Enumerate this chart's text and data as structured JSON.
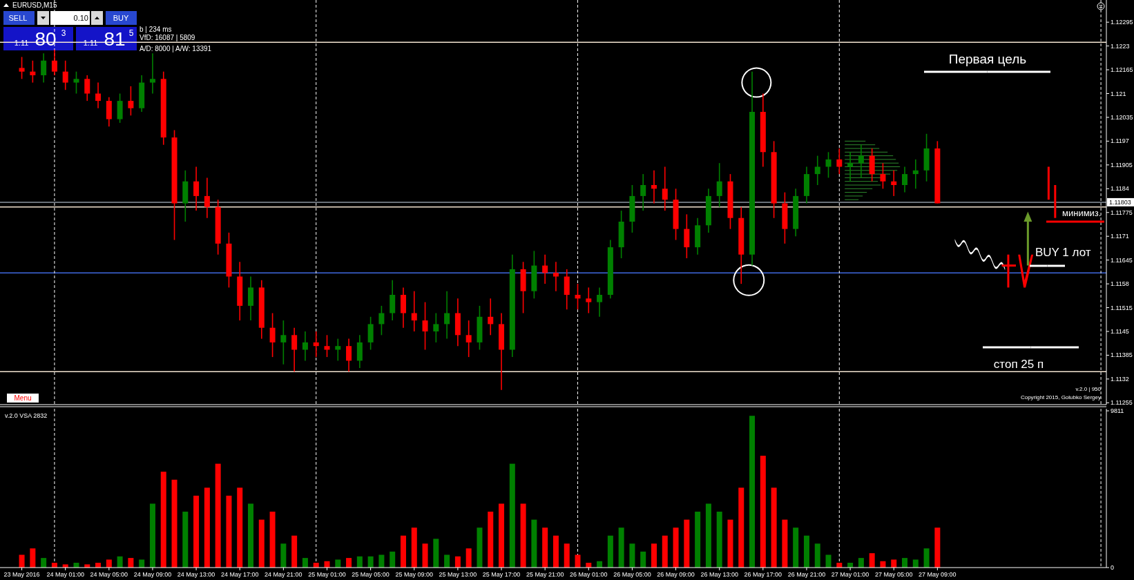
{
  "chart_data": [
    {
      "type": "candlestick",
      "title": "EURUSD,M15",
      "x": [
        "2016-05-23T21:00",
        "2016-05-23T22:00",
        "2016-05-23T23:00",
        "2016-05-24T00:00",
        "2016-05-24T01:00",
        "2016-05-24T02:00",
        "2016-05-24T03:00",
        "2016-05-24T04:00",
        "2016-05-24T05:00",
        "2016-05-24T06:00",
        "2016-05-24T07:00",
        "2016-05-24T08:00",
        "2016-05-24T09:00",
        "2016-05-24T10:00",
        "2016-05-24T11:00",
        "2016-05-24T12:00",
        "2016-05-24T13:00",
        "2016-05-24T14:00",
        "2016-05-24T15:00",
        "2016-05-24T16:00",
        "2016-05-24T17:00",
        "2016-05-24T18:00",
        "2016-05-24T19:00",
        "2016-05-24T20:00",
        "2016-05-24T21:00",
        "2016-05-24T22:00",
        "2016-05-24T23:00",
        "2016-05-25T00:00",
        "2016-05-25T01:00",
        "2016-05-25T02:00",
        "2016-05-25T03:00",
        "2016-05-25T04:00",
        "2016-05-25T05:00",
        "2016-05-25T06:00",
        "2016-05-25T07:00",
        "2016-05-25T08:00",
        "2016-05-25T09:00",
        "2016-05-25T10:00",
        "2016-05-25T11:00",
        "2016-05-25T12:00",
        "2016-05-25T13:00",
        "2016-05-25T14:00",
        "2016-05-25T15:00",
        "2016-05-25T16:00",
        "2016-05-25T17:00",
        "2016-05-25T18:00",
        "2016-05-25T19:00",
        "2016-05-25T20:00",
        "2016-05-25T21:00",
        "2016-05-25T22:00",
        "2016-05-25T23:00",
        "2016-05-26T00:00",
        "2016-05-26T01:00",
        "2016-05-26T02:00",
        "2016-05-26T03:00",
        "2016-05-26T04:00",
        "2016-05-26T05:00",
        "2016-05-26T06:00",
        "2016-05-26T07:00",
        "2016-05-26T08:00",
        "2016-05-26T09:00",
        "2016-05-26T10:00",
        "2016-05-26T11:00",
        "2016-05-26T12:00",
        "2016-05-26T13:00",
        "2016-05-26T14:00",
        "2016-05-26T15:00",
        "2016-05-26T16:00",
        "2016-05-26T17:00",
        "2016-05-26T18:00",
        "2016-05-26T19:00",
        "2016-05-26T20:00",
        "2016-05-26T21:00",
        "2016-05-26T22:00",
        "2016-05-26T23:00",
        "2016-05-27T00:00",
        "2016-05-27T01:00",
        "2016-05-27T02:00",
        "2016-05-27T03:00",
        "2016-05-27T04:00",
        "2016-05-27T05:00",
        "2016-05-27T06:00",
        "2016-05-27T07:00",
        "2016-05-27T08:00",
        "2016-05-27T09:00"
      ],
      "ohlc": [
        [
          1.1217,
          1.122,
          1.1214,
          1.1216
        ],
        [
          1.1216,
          1.1219,
          1.1213,
          1.1215
        ],
        [
          1.1215,
          1.1221,
          1.1213,
          1.1219
        ],
        [
          1.1219,
          1.1222,
          1.1215,
          1.1216
        ],
        [
          1.1216,
          1.1219,
          1.1211,
          1.1213
        ],
        [
          1.1213,
          1.1216,
          1.121,
          1.1214
        ],
        [
          1.1214,
          1.1215,
          1.1208,
          1.121
        ],
        [
          1.121,
          1.1213,
          1.1206,
          1.1208
        ],
        [
          1.1208,
          1.1209,
          1.1201,
          1.1203
        ],
        [
          1.1203,
          1.121,
          1.1202,
          1.1208
        ],
        [
          1.1208,
          1.1212,
          1.1204,
          1.1206
        ],
        [
          1.1206,
          1.1215,
          1.1205,
          1.1213
        ],
        [
          1.1213,
          1.1221,
          1.121,
          1.1214
        ],
        [
          1.1214,
          1.1216,
          1.1196,
          1.1198
        ],
        [
          1.1198,
          1.12,
          1.117,
          1.118
        ],
        [
          1.118,
          1.1189,
          1.1175,
          1.1186
        ],
        [
          1.1186,
          1.119,
          1.1178,
          1.1182
        ],
        [
          1.1182,
          1.1187,
          1.1176,
          1.1179
        ],
        [
          1.1179,
          1.1181,
          1.1166,
          1.1169
        ],
        [
          1.1169,
          1.1172,
          1.1157,
          1.116
        ],
        [
          1.116,
          1.1164,
          1.1148,
          1.1152
        ],
        [
          1.1152,
          1.116,
          1.1148,
          1.1157
        ],
        [
          1.1157,
          1.1159,
          1.1143,
          1.1146
        ],
        [
          1.1146,
          1.115,
          1.1138,
          1.1142
        ],
        [
          1.1142,
          1.1148,
          1.1136,
          1.1144
        ],
        [
          1.1144,
          1.1146,
          1.1134,
          1.114
        ],
        [
          1.114,
          1.1145,
          1.1137,
          1.1142
        ],
        [
          1.1142,
          1.1145,
          1.1138,
          1.1141
        ],
        [
          1.1141,
          1.1144,
          1.1138,
          1.114
        ],
        [
          1.114,
          1.1143,
          1.1137,
          1.1141
        ],
        [
          1.1141,
          1.1143,
          1.1134,
          1.1137
        ],
        [
          1.1137,
          1.1144,
          1.1135,
          1.1142
        ],
        [
          1.1142,
          1.1149,
          1.114,
          1.1147
        ],
        [
          1.1147,
          1.1152,
          1.1144,
          1.115
        ],
        [
          1.115,
          1.1159,
          1.1148,
          1.1155
        ],
        [
          1.1155,
          1.1157,
          1.1146,
          1.115
        ],
        [
          1.115,
          1.1156,
          1.1145,
          1.1148
        ],
        [
          1.1148,
          1.1153,
          1.114,
          1.1145
        ],
        [
          1.1145,
          1.115,
          1.1142,
          1.1147
        ],
        [
          1.1147,
          1.1156,
          1.1143,
          1.115
        ],
        [
          1.115,
          1.1154,
          1.1141,
          1.1144
        ],
        [
          1.1144,
          1.1148,
          1.1138,
          1.1142
        ],
        [
          1.1142,
          1.1152,
          1.114,
          1.1149
        ],
        [
          1.1149,
          1.1154,
          1.1144,
          1.1147
        ],
        [
          1.1147,
          1.115,
          1.1129,
          1.114
        ],
        [
          1.114,
          1.1166,
          1.1138,
          1.1162
        ],
        [
          1.1162,
          1.1164,
          1.115,
          1.1156
        ],
        [
          1.1156,
          1.1167,
          1.1154,
          1.1163
        ],
        [
          1.1163,
          1.1166,
          1.1158,
          1.1161
        ],
        [
          1.1161,
          1.1164,
          1.1156,
          1.116
        ],
        [
          1.116,
          1.1162,
          1.1151,
          1.1155
        ],
        [
          1.1155,
          1.1158,
          1.1151,
          1.1154
        ],
        [
          1.1154,
          1.1157,
          1.115,
          1.1153
        ],
        [
          1.1153,
          1.1157,
          1.1149,
          1.1155
        ],
        [
          1.1155,
          1.117,
          1.1154,
          1.1168
        ],
        [
          1.1168,
          1.1178,
          1.1165,
          1.1175
        ],
        [
          1.1175,
          1.1185,
          1.1172,
          1.1182
        ],
        [
          1.1182,
          1.1188,
          1.1178,
          1.1185
        ],
        [
          1.1185,
          1.1189,
          1.118,
          1.1184
        ],
        [
          1.1184,
          1.119,
          1.1178,
          1.1181
        ],
        [
          1.1181,
          1.1184,
          1.117,
          1.1173
        ],
        [
          1.1173,
          1.1177,
          1.1165,
          1.1168
        ],
        [
          1.1168,
          1.1176,
          1.1166,
          1.1174
        ],
        [
          1.1174,
          1.1184,
          1.1172,
          1.1182
        ],
        [
          1.1182,
          1.1191,
          1.1179,
          1.1186
        ],
        [
          1.1186,
          1.1188,
          1.1173,
          1.1176
        ],
        [
          1.1176,
          1.1179,
          1.1158,
          1.1166
        ],
        [
          1.1166,
          1.1216,
          1.1163,
          1.1205
        ],
        [
          1.1205,
          1.121,
          1.119,
          1.1194
        ],
        [
          1.1194,
          1.1197,
          1.1176,
          1.118
        ],
        [
          1.118,
          1.1183,
          1.1169,
          1.1173
        ],
        [
          1.1173,
          1.1184,
          1.1171,
          1.1182
        ],
        [
          1.1182,
          1.119,
          1.118,
          1.1188
        ],
        [
          1.1188,
          1.1193,
          1.1185,
          1.119
        ],
        [
          1.119,
          1.1194,
          1.1187,
          1.1192
        ],
        [
          1.1192,
          1.1195,
          1.1188,
          1.119
        ],
        [
          1.119,
          1.1194,
          1.1186,
          1.1191
        ],
        [
          1.1191,
          1.1196,
          1.1187,
          1.1193
        ],
        [
          1.1193,
          1.1195,
          1.1186,
          1.1188
        ],
        [
          1.1188,
          1.1191,
          1.1184,
          1.1186
        ],
        [
          1.1186,
          1.1189,
          1.1182,
          1.1185
        ],
        [
          1.1185,
          1.119,
          1.1183,
          1.1188
        ],
        [
          1.1188,
          1.1192,
          1.1184,
          1.1189
        ],
        [
          1.1189,
          1.1199,
          1.1186,
          1.1195
        ],
        [
          1.1195,
          1.1197,
          1.118,
          1.118
        ]
      ],
      "colors": [
        "#ff0000",
        "#ff0000",
        "#008000",
        "#ff0000",
        "#ff0000",
        "#008000",
        "#ff0000",
        "#ff0000",
        "#ff0000",
        "#008000",
        "#ff0000",
        "#008000",
        "#008000",
        "#ff0000",
        "#ff0000",
        "#008000",
        "#ff0000",
        "#ff0000",
        "#ff0000",
        "#ff0000",
        "#ff0000",
        "#008000",
        "#ff0000",
        "#ff0000",
        "#008000",
        "#ff0000",
        "#008000",
        "#ff0000",
        "#ff0000",
        "#008000",
        "#ff0000",
        "#008000",
        "#008000",
        "#008000",
        "#008000",
        "#ff0000",
        "#ff0000",
        "#ff0000",
        "#008000",
        "#008000",
        "#ff0000",
        "#ff0000",
        "#008000",
        "#ff0000",
        "#ff0000",
        "#008000",
        "#ff0000",
        "#008000",
        "#ff0000",
        "#ff0000",
        "#ff0000",
        "#ff0000",
        "#ff0000",
        "#008000",
        "#008000",
        "#008000",
        "#008000",
        "#008000",
        "#ff0000",
        "#ff0000",
        "#ff0000",
        "#ff0000",
        "#008000",
        "#008000",
        "#008000",
        "#ff0000",
        "#ff0000",
        "#008000",
        "#ff0000",
        "#ff0000",
        "#ff0000",
        "#008000",
        "#008000",
        "#008000",
        "#008000",
        "#ff0000",
        "#008000",
        "#008000",
        "#ff0000",
        "#ff0000",
        "#ff0000",
        "#008000",
        "#008000",
        "#008000",
        "#ff0000"
      ],
      "xlim": [
        "2016-05-23T19:00",
        "2016-05-28T00:30"
      ],
      "ylim": [
        1.1125,
        1.1235
      ],
      "yticks": [
        1.11255,
        1.1132,
        1.11385,
        1.1145,
        1.11515,
        1.1158,
        1.11645,
        1.1171,
        1.11775,
        1.1184,
        1.11905,
        1.1197,
        1.12035,
        1.121,
        1.12165,
        1.1223,
        1.12295
      ],
      "tick_labels": "y",
      "ref_lines": [
        {
          "axis": "y",
          "value": 1.1224,
          "color": "#f5e6d3"
        },
        {
          "axis": "y",
          "value": 1.1179,
          "color": "#f5e6d3"
        },
        {
          "axis": "y",
          "value": 1.1134,
          "color": "#f5e6d3"
        },
        {
          "axis": "y",
          "value": 1.1161,
          "color": "#4169e1"
        },
        {
          "axis": "y",
          "value": 1.11803,
          "label": "1.11803",
          "color": "#8c96a0"
        },
        {
          "axis": "x",
          "value": "2016-05-24T00:00",
          "color": "#ffffff",
          "line_style": "dashed"
        },
        {
          "axis": "x",
          "value": "2016-05-25T00:00",
          "color": "#ffffff",
          "line_style": "dashed"
        },
        {
          "axis": "x",
          "value": "2016-05-26T00:00",
          "color": "#ffffff",
          "line_style": "dashed"
        },
        {
          "axis": "x",
          "value": "2016-05-27T00:00",
          "color": "#ffffff",
          "line_style": "dashed"
        },
        {
          "axis": "x",
          "value": "2016-05-28T00:00",
          "color": "#ffffff",
          "line_style": "dashed"
        }
      ],
      "annotations": [
        "Первая цель",
        "минимиз.",
        "BUY 1 лот",
        "стоп 25 п",
        "SELL",
        "0.10",
        "BUY",
        "1.11",
        "80",
        "3",
        "1.11",
        "81",
        "5",
        "b | 234 ms",
        "VfD: 16087 | 5809",
        "A/D: 8000 | A/W: 13391",
        "Menu",
        "v.2.0 | 950",
        "Copyright 2015, Golubko Sergey"
      ]
    },
    {
      "type": "bar",
      "title": "v.2.0 VSA 2832",
      "x": [
        "2016-05-23T21:00",
        "2016-05-23T22:00",
        "2016-05-23T23:00",
        "2016-05-24T00:00",
        "2016-05-24T01:00",
        "2016-05-24T02:00",
        "2016-05-24T03:00",
        "2016-05-24T04:00",
        "2016-05-24T05:00",
        "2016-05-24T06:00",
        "2016-05-24T07:00",
        "2016-05-24T08:00",
        "2016-05-24T09:00",
        "2016-05-24T10:00",
        "2016-05-24T11:00",
        "2016-05-24T12:00",
        "2016-05-24T13:00",
        "2016-05-24T14:00",
        "2016-05-24T15:00",
        "2016-05-24T16:00",
        "2016-05-24T17:00",
        "2016-05-24T18:00",
        "2016-05-24T19:00",
        "2016-05-24T20:00",
        "2016-05-24T21:00",
        "2016-05-24T22:00",
        "2016-05-24T23:00",
        "2016-05-25T00:00",
        "2016-05-25T01:00",
        "2016-05-25T02:00",
        "2016-05-25T03:00",
        "2016-05-25T04:00",
        "2016-05-25T05:00",
        "2016-05-25T06:00",
        "2016-05-25T07:00",
        "2016-05-25T08:00",
        "2016-05-25T09:00",
        "2016-05-25T10:00",
        "2016-05-25T11:00",
        "2016-05-25T12:00",
        "2016-05-25T13:00",
        "2016-05-25T14:00",
        "2016-05-25T15:00",
        "2016-05-25T16:00",
        "2016-05-25T17:00",
        "2016-05-25T18:00",
        "2016-05-25T19:00",
        "2016-05-25T20:00",
        "2016-05-25T21:00",
        "2016-05-25T22:00",
        "2016-05-25T23:00",
        "2016-05-26T00:00",
        "2016-05-26T01:00",
        "2016-05-26T02:00",
        "2016-05-26T03:00",
        "2016-05-26T04:00",
        "2016-05-26T05:00",
        "2016-05-26T06:00",
        "2016-05-26T07:00",
        "2016-05-26T08:00",
        "2016-05-26T09:00",
        "2016-05-26T10:00",
        "2016-05-26T11:00",
        "2016-05-26T12:00",
        "2016-05-26T13:00",
        "2016-05-26T14:00",
        "2016-05-26T15:00",
        "2016-05-26T16:00",
        "2016-05-26T17:00",
        "2016-05-26T18:00",
        "2016-05-26T19:00",
        "2016-05-26T20:00",
        "2016-05-26T21:00",
        "2016-05-26T22:00",
        "2016-05-26T23:00",
        "2016-05-27T00:00",
        "2016-05-27T01:00",
        "2016-05-27T02:00",
        "2016-05-27T03:00",
        "2016-05-27T04:00",
        "2016-05-27T05:00",
        "2016-05-27T06:00",
        "2016-05-27T07:00",
        "2016-05-27T08:00",
        "2016-05-27T09:00"
      ],
      "values": [
        800,
        1200,
        600,
        300,
        200,
        300,
        200,
        300,
        500,
        700,
        600,
        500,
        4000,
        6000,
        5500,
        3500,
        4500,
        5000,
        6500,
        4500,
        5000,
        4000,
        3000,
        3500,
        1500,
        2000,
        600,
        300,
        400,
        500,
        600,
        700,
        700,
        800,
        1000,
        2000,
        2500,
        1500,
        1800,
        800,
        700,
        1200,
        2500,
        3500,
        4000,
        6500,
        4000,
        3000,
        2500,
        2000,
        1500,
        800,
        300,
        400,
        2000,
        2500,
        1500,
        1000,
        1500,
        2000,
        2500,
        3000,
        3500,
        4000,
        3500,
        3000,
        5000,
        9500,
        7000,
        5000,
        3000,
        2500,
        2000,
        1500,
        800,
        300,
        300,
        600,
        900,
        400,
        500,
        600,
        500,
        1200,
        2500
      ],
      "colors": [
        "#ff0000",
        "#ff0000",
        "#008000",
        "#ff0000",
        "#ff0000",
        "#008000",
        "#ff0000",
        "#ff0000",
        "#ff0000",
        "#008000",
        "#ff0000",
        "#008000",
        "#008000",
        "#ff0000",
        "#ff0000",
        "#008000",
        "#ff0000",
        "#ff0000",
        "#ff0000",
        "#ff0000",
        "#ff0000",
        "#008000",
        "#ff0000",
        "#ff0000",
        "#008000",
        "#ff0000",
        "#008000",
        "#ff0000",
        "#ff0000",
        "#008000",
        "#ff0000",
        "#008000",
        "#008000",
        "#008000",
        "#008000",
        "#ff0000",
        "#ff0000",
        "#ff0000",
        "#008000",
        "#008000",
        "#ff0000",
        "#ff0000",
        "#008000",
        "#ff0000",
        "#ff0000",
        "#008000",
        "#ff0000",
        "#008000",
        "#ff0000",
        "#ff0000",
        "#ff0000",
        "#ff0000",
        "#ff0000",
        "#008000",
        "#008000",
        "#008000",
        "#008000",
        "#008000",
        "#ff0000",
        "#ff0000",
        "#ff0000",
        "#ff0000",
        "#008000",
        "#008000",
        "#008000",
        "#ff0000",
        "#ff0000",
        "#008000",
        "#ff0000",
        "#ff0000",
        "#ff0000",
        "#008000",
        "#008000",
        "#008000",
        "#008000",
        "#ff0000",
        "#008000",
        "#008000",
        "#ff0000",
        "#ff0000",
        "#ff0000",
        "#008000",
        "#008000",
        "#008000",
        "#ff0000"
      ],
      "xlim": [
        "2016-05-23T19:00",
        "2016-05-28T00:30"
      ],
      "xticks": [
        {
          "value": "2016-05-23T21:00",
          "label": "23 May 2016"
        },
        {
          "value": "2016-05-24T01:00",
          "label": "24 May 01:00"
        },
        {
          "value": "2016-05-24T05:00",
          "label": "24 May 05:00"
        },
        {
          "value": "2016-05-24T09:00",
          "label": "24 May 09:00"
        },
        {
          "value": "2016-05-24T13:00",
          "label": "24 May 13:00"
        },
        {
          "value": "2016-05-24T17:00",
          "label": "24 May 17:00"
        },
        {
          "value": "2016-05-24T21:00",
          "label": "24 May 21:00"
        },
        {
          "value": "2016-05-25T01:00",
          "label": "25 May 01:00"
        },
        {
          "value": "2016-05-25T05:00",
          "label": "25 May 05:00"
        },
        {
          "value": "2016-05-25T09:00",
          "label": "25 May 09:00"
        },
        {
          "value": "2016-05-25T13:00",
          "label": "25 May 13:00"
        },
        {
          "value": "2016-05-25T17:00",
          "label": "25 May 17:00"
        },
        {
          "value": "2016-05-25T21:00",
          "label": "25 May 21:00"
        },
        {
          "value": "2016-05-26T01:00",
          "label": "26 May 01:00"
        },
        {
          "value": "2016-05-26T05:00",
          "label": "26 May 05:00"
        },
        {
          "value": "2016-05-26T09:00",
          "label": "26 May 09:00"
        },
        {
          "value": "2016-05-26T13:00",
          "label": "26 May 13:00"
        },
        {
          "value": "2016-05-26T17:00",
          "label": "26 May 17:00"
        },
        {
          "value": "2016-05-26T21:00",
          "label": "26 May 21:00"
        },
        {
          "value": "2016-05-27T01:00",
          "label": "27 May 01:00"
        },
        {
          "value": "2016-05-27T05:00",
          "label": "27 May 05:00"
        },
        {
          "value": "2016-05-27T09:00",
          "label": "27 May 09:00"
        }
      ],
      "ylim": [
        0,
        9811
      ],
      "yticks": [
        0,
        9811
      ],
      "ref_lines": [
        {
          "axis": "x",
          "value": "2016-05-24T00:00",
          "color": "#ffffff",
          "line_style": "dashed"
        },
        {
          "axis": "x",
          "value": "2016-05-25T00:00",
          "color": "#ffffff",
          "line_style": "dashed"
        },
        {
          "axis": "x",
          "value": "2016-05-26T00:00",
          "color": "#ffffff",
          "line_style": "dashed"
        },
        {
          "axis": "x",
          "value": "2016-05-27T00:00",
          "color": "#ffffff",
          "line_style": "dashed"
        },
        {
          "axis": "x",
          "value": "2016-05-28T00:00",
          "color": "#ffffff",
          "line_style": "dashed"
        }
      ]
    }
  ]
}
